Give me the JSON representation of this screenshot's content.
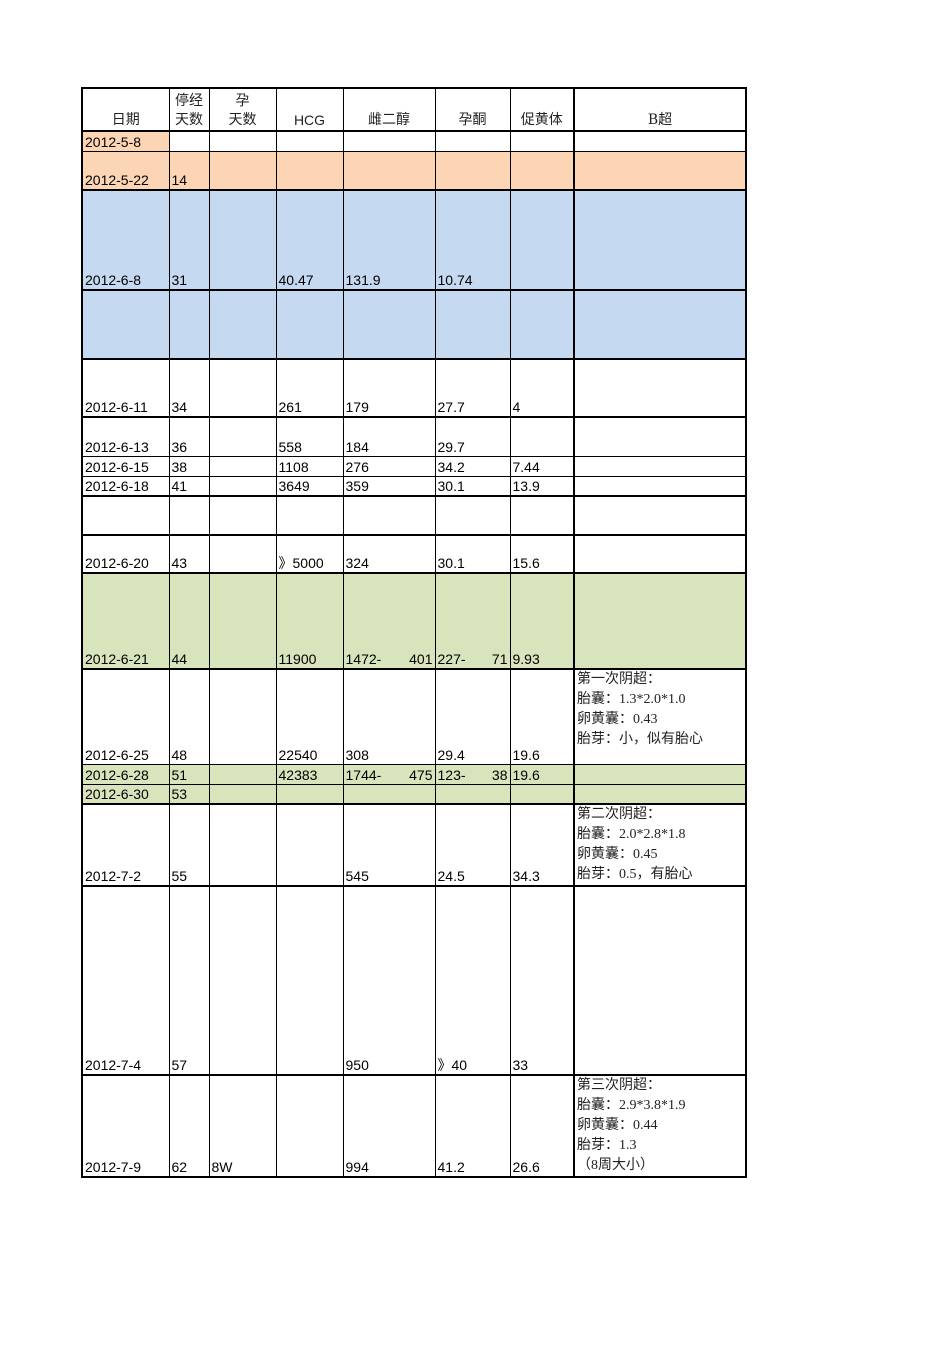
{
  "header": [
    "日期",
    "停经\n天数",
    "孕\n天数",
    "HCG",
    "雌二醇",
    "孕酮",
    "促黄体",
    "B超"
  ],
  "colors": {
    "orange": "#fcd5b4",
    "blue": "#c5d9f1",
    "green": "#d8e4bc"
  },
  "rows": [
    {
      "fill": "orange-date",
      "cells": [
        "2012-5-8",
        "",
        "",
        "",
        "",
        "",
        "",
        ""
      ]
    },
    {
      "fill": "orange",
      "cells": [
        "2012-5-22",
        "14",
        "",
        "",
        "",
        "",
        "",
        ""
      ]
    },
    {
      "fill": "blue",
      "cells": [
        "2012-6-8",
        "31",
        "",
        "40.47",
        "131.9",
        "10.74",
        "",
        ""
      ]
    },
    {
      "fill": "blue",
      "cells": [
        "",
        "",
        "",
        "",
        "",
        "",
        "",
        ""
      ]
    },
    {
      "fill": "",
      "cells": [
        "2012-6-11",
        "34",
        "",
        "261",
        "179",
        "27.7",
        "4",
        ""
      ]
    },
    {
      "fill": "",
      "cells": [
        "2012-6-13",
        "36",
        "",
        "558",
        "184",
        "29.7",
        "",
        ""
      ]
    },
    {
      "fill": "",
      "cells": [
        "2012-6-15",
        "38",
        "",
        "1108",
        "276",
        "34.2",
        "7.44",
        ""
      ]
    },
    {
      "fill": "",
      "cells": [
        "2012-6-18",
        "41",
        "",
        "3649",
        "359",
        "30.1",
        "13.9",
        ""
      ]
    },
    {
      "fill": "",
      "cells": [
        "",
        "",
        "",
        "",
        "",
        "",
        "",
        ""
      ]
    },
    {
      "fill": "",
      "cells": [
        "2012-6-20",
        "43",
        "",
        "》5000",
        "324",
        "30.1",
        "15.6",
        ""
      ]
    },
    {
      "fill": "green",
      "cells": [
        "2012-6-21",
        "44",
        "",
        "11900",
        "1472-|401",
        "227-|71",
        "9.93",
        ""
      ]
    },
    {
      "fill": "",
      "cells": [
        "2012-6-25",
        "48",
        "",
        "22540",
        "308",
        "29.4",
        "19.6",
        "第一次阴超：\n胎囊：1.3*2.0*1.0\n卵黄囊：0.43\n胎芽：小，似有胎心"
      ]
    },
    {
      "fill": "green",
      "cells": [
        "2012-6-28",
        "51",
        "",
        "42383",
        "1744-|475",
        "123-|38",
        "19.6",
        ""
      ]
    },
    {
      "fill": "green",
      "cells": [
        "2012-6-30",
        "53",
        "",
        "",
        "",
        "",
        "",
        ""
      ]
    },
    {
      "fill": "",
      "cells": [
        "2012-7-2",
        "55",
        "",
        "",
        "545",
        "24.5",
        "34.3",
        "第二次阴超：\n胎囊：2.0*2.8*1.8\n卵黄囊：0.45\n胎芽：0.5，有胎心"
      ]
    },
    {
      "fill": "",
      "cells": [
        "2012-7-4",
        "57",
        "",
        "",
        "950",
        "》40",
        "33",
        ""
      ]
    },
    {
      "fill": "",
      "cells": [
        "2012-7-9",
        "62",
        "8W",
        "",
        "994",
        "41.2",
        "26.6",
        "第三次阴超：\n胎囊：2.9*3.8*1.9\n卵黄囊：0.44\n胎芽：1.3\n（8周大小）"
      ]
    }
  ]
}
